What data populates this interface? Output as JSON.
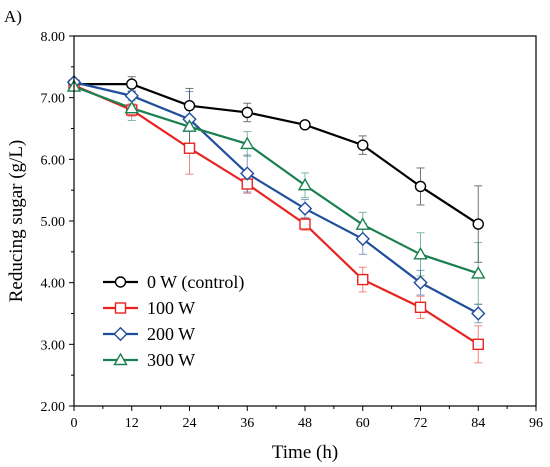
{
  "chart_data": {
    "type": "line",
    "panel_label": "A)",
    "xlabel": "Time (h)",
    "ylabel": "Reducing sugar (g/L)",
    "xlim": [
      0,
      96
    ],
    "ylim": [
      2.0,
      8.0
    ],
    "x_ticks": [
      "0",
      "12",
      "24",
      "36",
      "48",
      "60",
      "72",
      "84",
      "96"
    ],
    "y_ticks": [
      "2.00",
      "3.00",
      "4.00",
      "5.00",
      "6.00",
      "7.00",
      "8.00"
    ],
    "grid": false,
    "legend_position": "bottom-left",
    "x": [
      0,
      12,
      24,
      36,
      48,
      60,
      72,
      84
    ],
    "series": [
      {
        "name": "0 W (control)",
        "color": "#000000",
        "marker": "circle",
        "values": [
          7.22,
          7.22,
          6.87,
          6.76,
          6.56,
          6.23,
          5.56,
          4.95
        ],
        "errors": [
          0.05,
          0.12,
          0.28,
          0.15,
          0.04,
          0.15,
          0.3,
          0.62
        ]
      },
      {
        "name": "100 W",
        "color": "#e8231f",
        "marker": "square",
        "values": [
          7.2,
          6.8,
          6.18,
          5.6,
          4.95,
          4.05,
          3.6,
          3.0
        ],
        "errors": [
          0.05,
          0.1,
          0.42,
          0.15,
          0.1,
          0.2,
          0.18,
          0.3
        ]
      },
      {
        "name": "200 W",
        "color": "#1f4e9c",
        "marker": "diamond",
        "values": [
          7.25,
          7.03,
          6.65,
          5.77,
          5.2,
          4.71,
          4.0,
          3.5
        ],
        "errors": [
          0.05,
          0.08,
          0.45,
          0.3,
          0.15,
          0.25,
          0.2,
          0.15
        ]
      },
      {
        "name": "300 W",
        "color": "#1a8050",
        "marker": "triangle",
        "values": [
          7.18,
          6.83,
          6.53,
          6.25,
          5.58,
          4.94,
          4.46,
          4.15
        ],
        "errors": [
          0.05,
          0.2,
          0.3,
          0.2,
          0.2,
          0.2,
          0.35,
          0.5
        ]
      }
    ]
  }
}
